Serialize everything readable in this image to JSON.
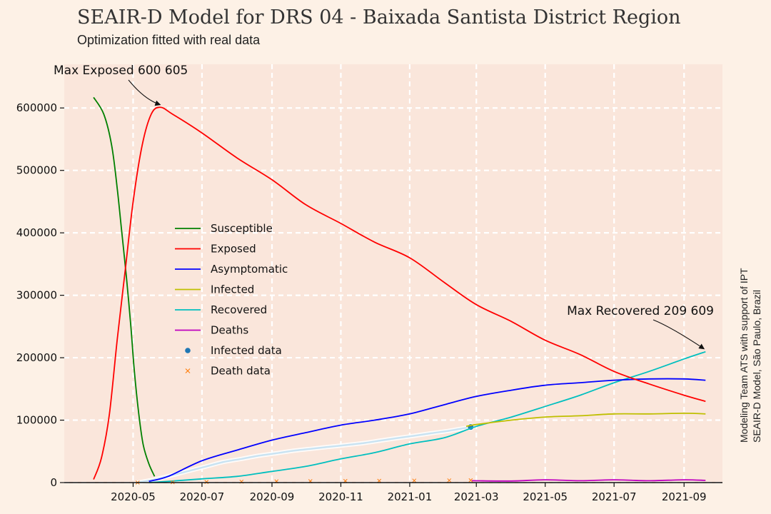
{
  "chart_data": {
    "type": "line",
    "title": "SEAIR-D Model for DRS 04 - Baixada Santista District Region",
    "subtitle": "Optimization fitted with real data",
    "xlabel": "",
    "ylabel": "",
    "side_note": [
      "Modeling Team ATS with support of IPT",
      "SEAIR-D Model, São Paulo, Brazil"
    ],
    "x_type": "date",
    "xlim": [
      "2020-03-01",
      "2021-10-05"
    ],
    "ylim": [
      0,
      670000
    ],
    "x_ticks": [
      "2020-05-01",
      "2020-07-01",
      "2020-09-01",
      "2020-11-01",
      "2021-01-01",
      "2021-03-01",
      "2021-05-01",
      "2021-07-01",
      "2021-09-01"
    ],
    "x_tick_labels": [
      "2020-05",
      "2020-07",
      "2020-09",
      "2020-11",
      "2021-01",
      "2021-03",
      "2021-05",
      "2021-07",
      "2021-09"
    ],
    "y_ticks": [
      0,
      100000,
      200000,
      300000,
      400000,
      500000,
      600000
    ],
    "y_tick_labels": [
      "0",
      "100000",
      "200000",
      "300000",
      "400000",
      "500000",
      "600000"
    ],
    "grid": true,
    "legend_position": "center-left",
    "series": [
      {
        "name": "Susceptible",
        "color": "#008000",
        "kind": "line",
        "points": [
          [
            "2020-03-27",
            617000
          ],
          [
            "2020-04-05",
            590000
          ],
          [
            "2020-04-12",
            540000
          ],
          [
            "2020-04-17",
            470000
          ],
          [
            "2020-04-21",
            400000
          ],
          [
            "2020-04-25",
            330000
          ],
          [
            "2020-04-29",
            250000
          ],
          [
            "2020-05-02",
            180000
          ],
          [
            "2020-05-06",
            110000
          ],
          [
            "2020-05-10",
            60000
          ],
          [
            "2020-05-15",
            30000
          ],
          [
            "2020-05-20",
            10000
          ]
        ]
      },
      {
        "name": "Exposed",
        "color": "#ff0000",
        "kind": "line",
        "points": [
          [
            "2020-03-27",
            5000
          ],
          [
            "2020-04-03",
            40000
          ],
          [
            "2020-04-10",
            110000
          ],
          [
            "2020-04-17",
            230000
          ],
          [
            "2020-04-24",
            340000
          ],
          [
            "2020-05-01",
            450000
          ],
          [
            "2020-05-09",
            540000
          ],
          [
            "2020-05-17",
            590000
          ],
          [
            "2020-05-25",
            601000
          ],
          [
            "2020-06-05",
            590000
          ],
          [
            "2020-07-01",
            560000
          ],
          [
            "2020-08-01",
            520000
          ],
          [
            "2020-09-01",
            485000
          ],
          [
            "2020-10-01",
            445000
          ],
          [
            "2020-11-01",
            415000
          ],
          [
            "2020-12-01",
            385000
          ],
          [
            "2021-01-01",
            360000
          ],
          [
            "2021-02-01",
            320000
          ],
          [
            "2021-03-01",
            285000
          ],
          [
            "2021-04-01",
            258000
          ],
          [
            "2021-05-01",
            228000
          ],
          [
            "2021-06-01",
            205000
          ],
          [
            "2021-07-01",
            178000
          ],
          [
            "2021-08-01",
            158000
          ],
          [
            "2021-09-01",
            140000
          ],
          [
            "2021-09-20",
            130000
          ]
        ]
      },
      {
        "name": "Asymptomatic",
        "color": "#0000ff",
        "kind": "line",
        "points": [
          [
            "2020-05-15",
            2000
          ],
          [
            "2020-06-01",
            10000
          ],
          [
            "2020-07-01",
            35000
          ],
          [
            "2020-08-01",
            52000
          ],
          [
            "2020-09-01",
            68000
          ],
          [
            "2020-10-01",
            80000
          ],
          [
            "2020-11-01",
            92000
          ],
          [
            "2020-12-01",
            100000
          ],
          [
            "2021-01-01",
            110000
          ],
          [
            "2021-02-01",
            125000
          ],
          [
            "2021-03-01",
            138000
          ],
          [
            "2021-04-01",
            148000
          ],
          [
            "2021-05-01",
            156000
          ],
          [
            "2021-06-01",
            160000
          ],
          [
            "2021-07-01",
            164000
          ],
          [
            "2021-08-01",
            166000
          ],
          [
            "2021-09-01",
            166000
          ],
          [
            "2021-09-20",
            164000
          ]
        ]
      },
      {
        "name": "Infected",
        "color": "#bfbf00",
        "kind": "line",
        "points": [
          [
            "2021-02-20",
            90000
          ],
          [
            "2021-03-01",
            93000
          ],
          [
            "2021-04-01",
            100000
          ],
          [
            "2021-05-01",
            105000
          ],
          [
            "2021-06-01",
            107000
          ],
          [
            "2021-07-01",
            110000
          ],
          [
            "2021-08-01",
            110000
          ],
          [
            "2021-09-01",
            111000
          ],
          [
            "2021-09-20",
            110000
          ]
        ]
      },
      {
        "name": "Recovered",
        "color": "#00bfbf",
        "kind": "line",
        "points": [
          [
            "2020-05-15",
            0
          ],
          [
            "2020-06-01",
            2000
          ],
          [
            "2020-07-01",
            6000
          ],
          [
            "2020-08-01",
            10000
          ],
          [
            "2020-09-01",
            18000
          ],
          [
            "2020-10-01",
            26000
          ],
          [
            "2020-11-01",
            38000
          ],
          [
            "2020-12-01",
            48000
          ],
          [
            "2021-01-01",
            62000
          ],
          [
            "2021-02-01",
            72000
          ],
          [
            "2021-03-01",
            90000
          ],
          [
            "2021-04-01",
            105000
          ],
          [
            "2021-05-01",
            122000
          ],
          [
            "2021-06-01",
            140000
          ],
          [
            "2021-07-01",
            160000
          ],
          [
            "2021-08-01",
            178000
          ],
          [
            "2021-09-01",
            198000
          ],
          [
            "2021-09-20",
            209609
          ]
        ]
      },
      {
        "name": "Deaths",
        "color": "#bf00bf",
        "kind": "line",
        "points": [
          [
            "2021-02-25",
            3000
          ],
          [
            "2021-04-01",
            2500
          ],
          [
            "2021-05-01",
            4500
          ],
          [
            "2021-06-01",
            3000
          ],
          [
            "2021-07-01",
            4500
          ],
          [
            "2021-08-01",
            3000
          ],
          [
            "2021-09-01",
            4500
          ],
          [
            "2021-09-20",
            3500
          ]
        ]
      },
      {
        "name": "Infected data",
        "color": "#1f77b4",
        "kind": "scatter",
        "points": [
          [
            "2020-05-05",
            0
          ],
          [
            "2020-05-20",
            5000
          ],
          [
            "2020-06-05",
            12000
          ],
          [
            "2020-06-20",
            19000
          ],
          [
            "2020-07-05",
            26000
          ],
          [
            "2020-07-20",
            33000
          ],
          [
            "2020-08-05",
            38000
          ],
          [
            "2020-08-20",
            43000
          ],
          [
            "2020-09-05",
            47000
          ],
          [
            "2020-09-20",
            51000
          ],
          [
            "2020-10-05",
            54000
          ],
          [
            "2020-10-20",
            57000
          ],
          [
            "2020-11-05",
            60000
          ],
          [
            "2020-11-20",
            63000
          ],
          [
            "2020-12-05",
            67000
          ],
          [
            "2020-12-20",
            71000
          ],
          [
            "2021-01-05",
            75000
          ],
          [
            "2021-01-20",
            79000
          ],
          [
            "2021-02-05",
            83000
          ],
          [
            "2021-02-24",
            89000
          ]
        ]
      },
      {
        "name": "Death data",
        "color": "#ff7f0e",
        "kind": "x",
        "points": [
          [
            "2020-05-05",
            0
          ],
          [
            "2020-06-05",
            500
          ],
          [
            "2020-07-05",
            1000
          ],
          [
            "2020-08-05",
            1500
          ],
          [
            "2020-09-05",
            2000
          ],
          [
            "2020-10-05",
            2300
          ],
          [
            "2020-11-05",
            2600
          ],
          [
            "2020-12-05",
            2900
          ],
          [
            "2021-01-05",
            3200
          ],
          [
            "2021-02-05",
            3500
          ],
          [
            "2021-02-24",
            3700
          ]
        ]
      }
    ],
    "annotations": [
      {
        "text": "Max Exposed 600 605",
        "x": "2020-05-25",
        "y": 600605
      },
      {
        "text": "Max Recovered 209 609",
        "x": "2021-09-20",
        "y": 209609
      }
    ]
  }
}
